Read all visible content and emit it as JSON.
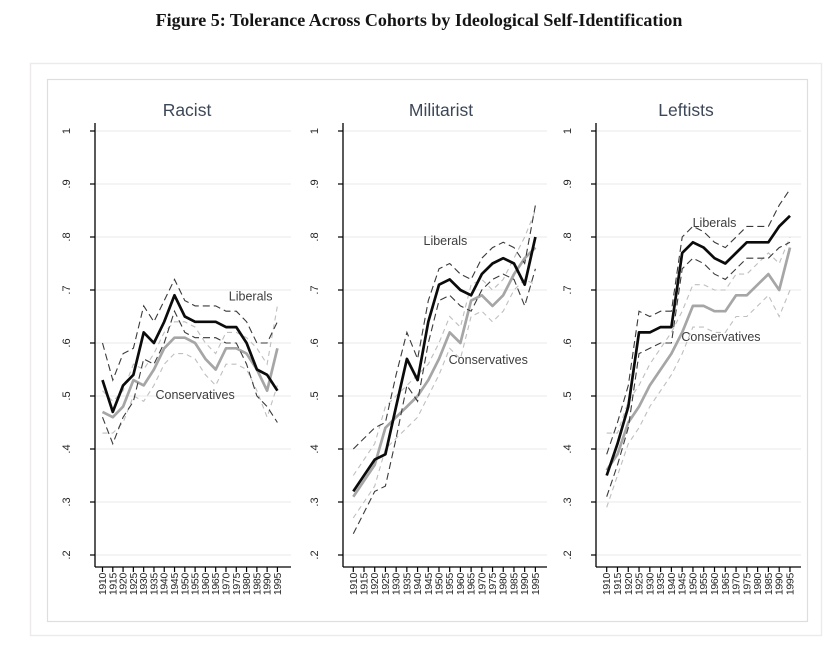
{
  "figure": {
    "title": "Figure 5: Tolerance Across Cohorts by Ideological Self-Identification"
  },
  "axes": {
    "x_categories": [
      "1910",
      "1915",
      "1920",
      "1925",
      "1930",
      "1935",
      "1940",
      "1945",
      "1950",
      "1955",
      "1960",
      "1965",
      "1970",
      "1975",
      "1980",
      "1985",
      "1990",
      "1995"
    ],
    "y_ticks": [
      {
        "label": "1",
        "value": 1.0
      },
      {
        "label": ".9",
        "value": 0.9
      },
      {
        "label": ".8",
        "value": 0.8
      },
      {
        "label": ".7",
        "value": 0.7
      },
      {
        "label": ".6",
        "value": 0.6
      },
      {
        "label": ".5",
        "value": 0.5
      },
      {
        "label": ".4",
        "value": 0.4
      },
      {
        "label": ".3",
        "value": 0.3
      },
      {
        "label": ".2",
        "value": 0.2
      }
    ],
    "y_range": [
      0.2,
      1.0
    ]
  },
  "colors": {
    "liberals_line": "#0b0b0b",
    "liberals_ci": "#3a3a3a",
    "conservatives_line": "#a6a6a6",
    "conservatives_ci": "#bfbfbf",
    "grid": "#eaeaea",
    "axis": "#000000",
    "tick_label": "#262626",
    "panel_title": "#3c4757",
    "annotation": "#3d3d3d",
    "frame_outer": "#eceaea",
    "frame_inner": "#dfdddd",
    "background": "#ffffff"
  },
  "chart_data": [
    {
      "type": "line",
      "title": "Racist",
      "x": [
        1910,
        1915,
        1920,
        1925,
        1930,
        1935,
        1940,
        1945,
        1950,
        1955,
        1960,
        1965,
        1970,
        1975,
        1980,
        1985,
        1990,
        1995
      ],
      "ylim": [
        0.2,
        1.0
      ],
      "grid": true,
      "series": [
        {
          "key": "liberals",
          "name": "Liberals",
          "values": [
            0.53,
            0.47,
            0.52,
            0.54,
            0.62,
            0.6,
            0.64,
            0.69,
            0.65,
            0.64,
            0.64,
            0.64,
            0.63,
            0.63,
            0.6,
            0.55,
            0.54,
            0.51
          ],
          "ci_low": [
            0.46,
            0.41,
            0.46,
            0.49,
            0.57,
            0.56,
            0.6,
            0.66,
            0.62,
            0.61,
            0.61,
            0.61,
            0.6,
            0.6,
            0.56,
            0.5,
            0.48,
            0.45
          ],
          "ci_high": [
            0.6,
            0.53,
            0.58,
            0.59,
            0.67,
            0.64,
            0.68,
            0.72,
            0.68,
            0.67,
            0.67,
            0.67,
            0.66,
            0.66,
            0.64,
            0.6,
            0.6,
            0.64
          ]
        },
        {
          "key": "conservatives",
          "name": "Conservatives",
          "values": [
            0.47,
            0.46,
            0.48,
            0.53,
            0.52,
            0.55,
            0.59,
            0.61,
            0.61,
            0.6,
            0.57,
            0.55,
            0.59,
            0.59,
            0.58,
            0.55,
            0.51,
            0.59
          ],
          "ci_low": [
            0.43,
            0.43,
            0.45,
            0.5,
            0.49,
            0.52,
            0.56,
            0.58,
            0.58,
            0.57,
            0.54,
            0.52,
            0.56,
            0.56,
            0.55,
            0.51,
            0.46,
            0.52
          ],
          "ci_high": [
            0.51,
            0.49,
            0.51,
            0.56,
            0.55,
            0.58,
            0.62,
            0.64,
            0.64,
            0.63,
            0.6,
            0.58,
            0.62,
            0.62,
            0.61,
            0.59,
            0.56,
            0.67
          ]
        }
      ],
      "annotations": [
        {
          "text": "Liberals",
          "year": 1982,
          "value": 0.688
        },
        {
          "text": "Conservatives",
          "year": 1955,
          "value": 0.502
        }
      ]
    },
    {
      "type": "line",
      "title": "Militarist",
      "x": [
        1910,
        1915,
        1920,
        1925,
        1930,
        1935,
        1940,
        1945,
        1950,
        1955,
        1960,
        1965,
        1970,
        1975,
        1980,
        1985,
        1990,
        1995
      ],
      "ylim": [
        0.2,
        1.0
      ],
      "grid": true,
      "series": [
        {
          "key": "liberals",
          "name": "Liberals",
          "values": [
            0.32,
            0.35,
            0.38,
            0.39,
            0.48,
            0.57,
            0.53,
            0.64,
            0.71,
            0.72,
            0.7,
            0.69,
            0.73,
            0.75,
            0.76,
            0.75,
            0.71,
            0.8
          ],
          "ci_low": [
            0.24,
            0.28,
            0.32,
            0.33,
            0.42,
            0.52,
            0.49,
            0.6,
            0.68,
            0.69,
            0.67,
            0.66,
            0.7,
            0.72,
            0.73,
            0.72,
            0.67,
            0.74
          ],
          "ci_high": [
            0.4,
            0.42,
            0.44,
            0.45,
            0.54,
            0.62,
            0.57,
            0.68,
            0.74,
            0.75,
            0.73,
            0.72,
            0.76,
            0.78,
            0.79,
            0.78,
            0.75,
            0.86
          ]
        },
        {
          "key": "conservatives",
          "name": "Conservatives",
          "values": [
            0.31,
            0.34,
            0.37,
            0.44,
            0.46,
            0.48,
            0.5,
            0.53,
            0.57,
            0.62,
            0.6,
            0.68,
            0.69,
            0.67,
            0.69,
            0.73,
            0.76,
            0.78
          ],
          "ci_low": [
            0.27,
            0.3,
            0.33,
            0.4,
            0.42,
            0.44,
            0.46,
            0.5,
            0.54,
            0.59,
            0.57,
            0.65,
            0.66,
            0.64,
            0.66,
            0.7,
            0.72,
            0.71
          ],
          "ci_high": [
            0.35,
            0.38,
            0.41,
            0.48,
            0.5,
            0.52,
            0.54,
            0.56,
            0.6,
            0.65,
            0.63,
            0.71,
            0.72,
            0.7,
            0.72,
            0.76,
            0.8,
            0.85
          ]
        }
      ],
      "annotations": [
        {
          "text": "Liberals",
          "year": 1953,
          "value": 0.792
        },
        {
          "text": "Conservatives",
          "year": 1973,
          "value": 0.568
        }
      ]
    },
    {
      "type": "line",
      "title": "Leftists",
      "x": [
        1910,
        1915,
        1920,
        1925,
        1930,
        1935,
        1940,
        1945,
        1950,
        1955,
        1960,
        1965,
        1970,
        1975,
        1980,
        1985,
        1990,
        1995
      ],
      "ylim": [
        0.2,
        1.0
      ],
      "grid": true,
      "series": [
        {
          "key": "liberals",
          "name": "Liberals",
          "values": [
            0.35,
            0.41,
            0.48,
            0.62,
            0.62,
            0.63,
            0.63,
            0.77,
            0.79,
            0.78,
            0.76,
            0.75,
            0.77,
            0.79,
            0.79,
            0.79,
            0.82,
            0.84
          ],
          "ci_low": [
            0.31,
            0.37,
            0.44,
            0.58,
            0.59,
            0.6,
            0.6,
            0.74,
            0.76,
            0.75,
            0.73,
            0.72,
            0.74,
            0.76,
            0.76,
            0.76,
            0.78,
            0.79
          ],
          "ci_high": [
            0.39,
            0.45,
            0.52,
            0.66,
            0.65,
            0.66,
            0.66,
            0.8,
            0.82,
            0.81,
            0.79,
            0.78,
            0.8,
            0.82,
            0.82,
            0.82,
            0.86,
            0.89
          ]
        },
        {
          "key": "conservatives",
          "name": "Conservatives",
          "values": [
            0.36,
            0.39,
            0.45,
            0.48,
            0.52,
            0.55,
            0.58,
            0.62,
            0.67,
            0.67,
            0.66,
            0.66,
            0.69,
            0.69,
            0.71,
            0.73,
            0.7,
            0.78
          ],
          "ci_low": [
            0.29,
            0.35,
            0.41,
            0.44,
            0.48,
            0.51,
            0.54,
            0.58,
            0.63,
            0.63,
            0.62,
            0.62,
            0.65,
            0.65,
            0.67,
            0.69,
            0.65,
            0.7
          ],
          "ci_high": [
            0.43,
            0.43,
            0.49,
            0.52,
            0.56,
            0.59,
            0.62,
            0.66,
            0.71,
            0.71,
            0.7,
            0.7,
            0.73,
            0.73,
            0.75,
            0.77,
            0.75,
            0.8
          ]
        }
      ],
      "annotations": [
        {
          "text": "Liberals",
          "year": 1960,
          "value": 0.826
        },
        {
          "text": "Conservatives",
          "year": 1963,
          "value": 0.611
        }
      ]
    }
  ]
}
